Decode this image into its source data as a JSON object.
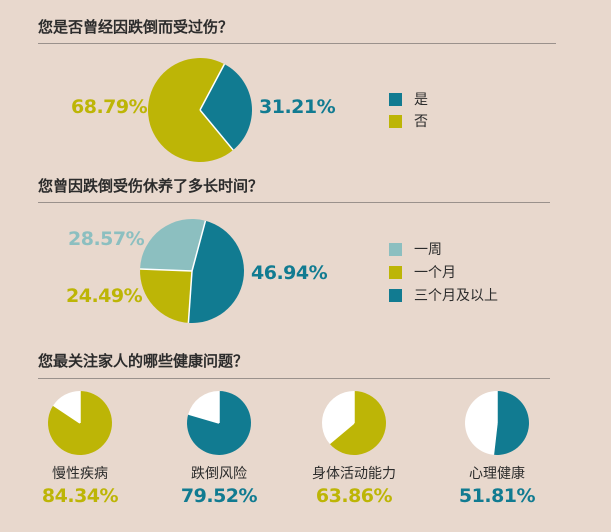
{
  "colors": {
    "teal": "#117b91",
    "olive": "#bdb506",
    "light_teal": "#8cbfc0",
    "white": "#ffffff",
    "background": "#e8d8cd"
  },
  "chart_data": [
    {
      "type": "pie",
      "title": "您是否曾经因跌倒而受过伤？",
      "categories": [
        "是",
        "否"
      ],
      "values": [
        31.21,
        68.79
      ],
      "labels": [
        "31.21%",
        "68.79%"
      ],
      "colors": [
        "#117b91",
        "#bdb506"
      ],
      "legend": [
        "是",
        "否"
      ],
      "legend_position": "right"
    },
    {
      "type": "pie",
      "title": "您曾因跌倒受伤休养了多长时间？",
      "categories": [
        "一周",
        "一个月",
        "三个月及以上"
      ],
      "values": [
        28.57,
        24.49,
        46.94
      ],
      "labels": [
        "28.57%",
        "24.49%",
        "46.94%"
      ],
      "colors": [
        "#8cbfc0",
        "#bdb506",
        "#117b91"
      ],
      "legend": [
        "一周",
        "一个月",
        "三个月及以上"
      ],
      "legend_position": "right"
    },
    {
      "type": "pie",
      "title": "您最关注家人的哪些健康问题？",
      "categories": [
        "慢性疾病",
        "跌倒风险",
        "身体活动能力",
        "心理健康"
      ],
      "values": [
        84.34,
        79.52,
        63.86,
        51.81
      ],
      "labels": [
        "84.34%",
        "79.52%",
        "63.86%",
        "51.81%"
      ],
      "colors": [
        "#bdb506",
        "#117b91",
        "#bdb506",
        "#117b91"
      ]
    }
  ]
}
